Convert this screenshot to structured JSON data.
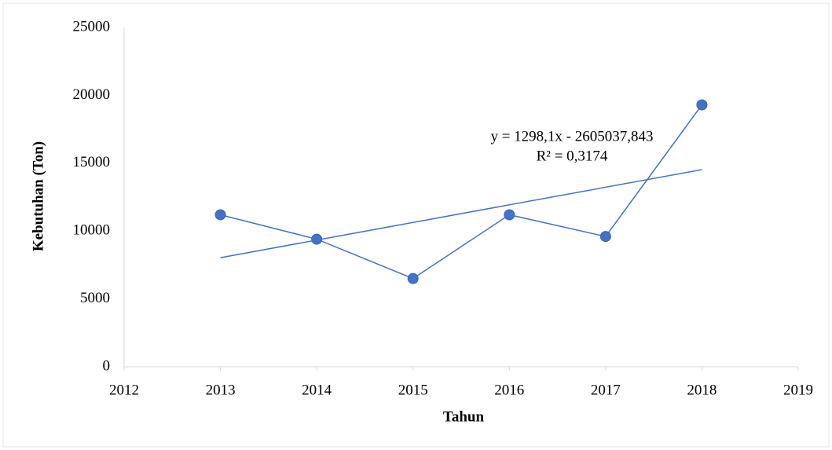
{
  "chart_data": {
    "type": "line",
    "x_label": "Tahun",
    "y_label": "Kebutuhan (Ton)",
    "x": [
      2013,
      2014,
      2015,
      2016,
      2017,
      2018
    ],
    "series": [
      {
        "color": "#4472c4",
        "values": [
          11200,
          9400,
          6500,
          11200,
          9600,
          19300
        ]
      }
    ],
    "trendline": {
      "color": "#4472c4",
      "x": [
        2013,
        2018
      ],
      "values": [
        8037,
        14528
      ]
    },
    "annotations": [
      "y = 1298,1x - 2605037,843",
      "R² = 0,3174"
    ],
    "xlim": [
      2012,
      2019
    ],
    "xticks": [
      2012,
      2013,
      2014,
      2015,
      2016,
      2017,
      2018,
      2019
    ],
    "ylim": [
      0,
      25000
    ],
    "yticks": [
      0,
      5000,
      10000,
      15000,
      20000,
      25000
    ],
    "grid": false
  }
}
